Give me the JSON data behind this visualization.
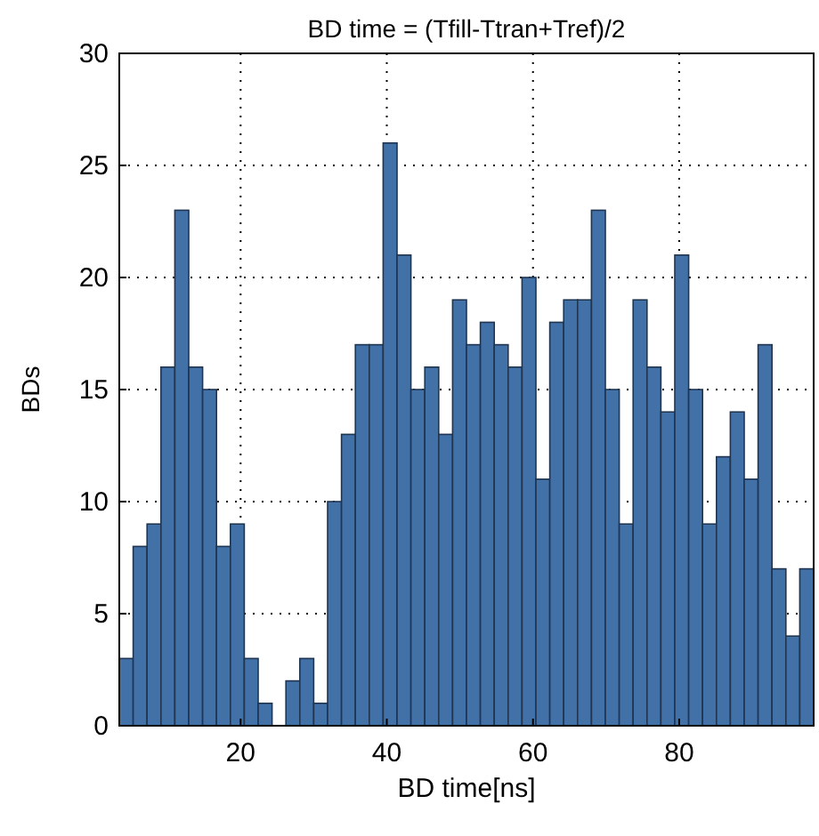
{
  "chart_data": {
    "type": "histogram",
    "title": "BD time = (Tfill-Ttran+Tref)/2",
    "xlabel": "BD time[ns]",
    "ylabel": "BDs",
    "bins": [
      3.4,
      5.3,
      7.2,
      9.1,
      11,
      12.9,
      14.8,
      16.7,
      18.6,
      20.5,
      22.4,
      24.3,
      26.2,
      28.1,
      30,
      31.9,
      33.8,
      35.7,
      37.6,
      39.5,
      41.4,
      43.3,
      45.2,
      47.1,
      49,
      50.9,
      52.8,
      54.7,
      56.6,
      58.5,
      60.4,
      62.3,
      64.2,
      66.1,
      68,
      69.9,
      71.8,
      73.7,
      75.6,
      77.5,
      79.4,
      81.3,
      83.2,
      85.1,
      87,
      88.9,
      90.8,
      92.7,
      94.6,
      96.5,
      98.4
    ],
    "values": [
      3,
      8,
      9,
      16,
      23,
      16,
      15,
      8,
      9,
      3,
      1,
      0,
      2,
      3,
      1,
      10,
      13,
      17,
      17,
      26,
      21,
      15,
      16,
      13,
      19,
      17,
      18,
      17,
      16,
      20,
      11,
      18,
      19,
      19,
      23,
      15,
      9,
      19,
      16,
      14,
      21,
      15,
      9,
      12,
      14,
      11,
      17,
      7,
      4,
      7
    ],
    "color": "#4271a8",
    "xlim": [
      3.4,
      98.4
    ],
    "xticks": [
      20,
      40,
      60,
      80
    ],
    "ylim": [
      0,
      30
    ],
    "yticks": [
      0,
      5,
      10,
      15,
      20,
      25,
      30
    ],
    "grid": true
  }
}
